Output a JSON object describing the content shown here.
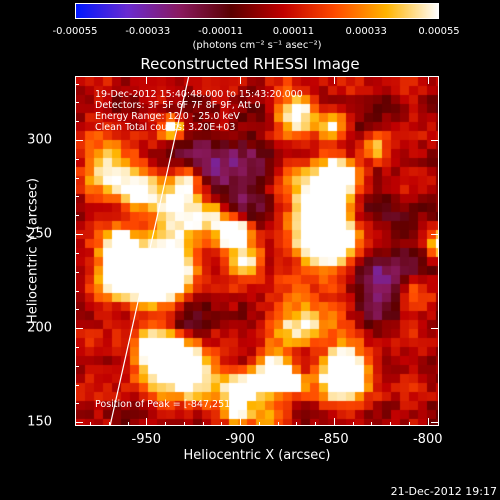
{
  "colorbar": {
    "labels": [
      "-0.00055",
      "-0.00033",
      "-0.00011",
      "0.00011",
      "0.00033",
      "0.00055"
    ],
    "units": "(photons cm⁻² s⁻¹ asec⁻²)",
    "colors": [
      "#0018ff",
      "#6a2bd0",
      "#8a1a60",
      "#5a0000",
      "#c00000",
      "#ff4a00",
      "#ffb400",
      "#ffffff"
    ]
  },
  "image": {
    "title": "Reconstructed RHESSI Image",
    "info_lines": [
      "19-Dec-2012 15:40:48.000 to 15:43:20.000",
      "Detectors: 3F 5F 6F 7F 8F 9F, Att 0",
      "Energy Range: 12.0 - 25.0 keV",
      "Clean     Total counts: 3.20E+03"
    ],
    "peak_text": "Position of Peak = [-847,251]",
    "xlabel": "Heliocentric X (arcsec)",
    "ylabel": "Heliocentric Y (arcsec)",
    "xticks": [
      "-950",
      "-900",
      "-850",
      "-800"
    ],
    "yticks": [
      "150",
      "200",
      "250",
      "300"
    ]
  },
  "chart_data": {
    "type": "heatmap",
    "title": "Reconstructed RHESSI Image",
    "xlabel": "Heliocentric X (arcsec)",
    "ylabel": "Heliocentric Y (arcsec)",
    "xlim": [
      -988,
      -794
    ],
    "ylim": [
      148,
      334
    ],
    "value_range": [
      -0.00055,
      0.00055
    ],
    "x_ticks": [
      -950,
      -900,
      -850,
      -800
    ],
    "y_ticks": [
      150,
      200,
      250,
      300
    ],
    "peak": [
      -847,
      251
    ],
    "limb": {
      "x_top": -928,
      "x_bottom": -970
    }
  },
  "footer": {
    "timestamp": "21-Dec-2012 19:17"
  }
}
